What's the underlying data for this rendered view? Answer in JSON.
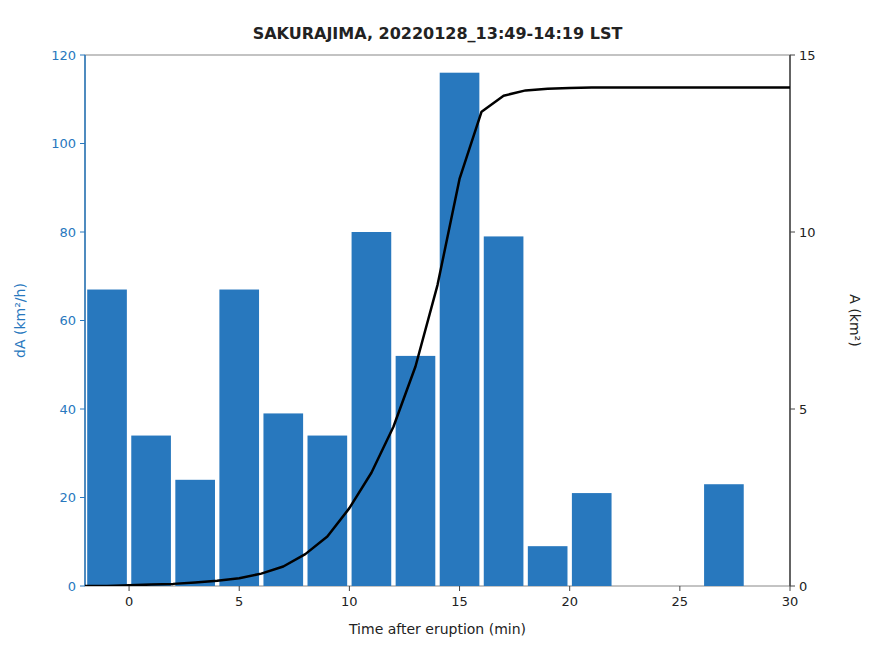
{
  "chart_data": {
    "type": "bar",
    "title": "SAKURAJIMA, 20220128_13:49-14:19 LST",
    "xlabel": "Time after eruption (min)",
    "ylabel": "dA (km²/h)",
    "y2label": "A (km²)",
    "xlim": [
      -2,
      30
    ],
    "xticks": [
      0,
      5,
      10,
      15,
      20,
      25,
      30
    ],
    "ylim": [
      0,
      120
    ],
    "yticks": [
      0,
      20,
      40,
      60,
      80,
      100,
      120
    ],
    "y2lim": [
      0,
      15
    ],
    "y2ticks": [
      0,
      5,
      10,
      15
    ],
    "series": [
      {
        "type": "bar",
        "color": "#2878be",
        "x": [
          -1,
          1,
          3,
          5,
          7,
          9,
          11,
          13,
          15,
          17,
          19,
          21,
          27
        ],
        "values": [
          67,
          34,
          24,
          67,
          39,
          34,
          80,
          52,
          116,
          79,
          9,
          21,
          23
        ]
      },
      {
        "type": "line",
        "color": "#000000",
        "axis": "y2",
        "x": [
          -2,
          -1,
          0,
          1,
          2,
          3,
          4,
          5,
          6,
          7,
          8,
          9,
          10,
          11,
          12,
          13,
          14,
          15,
          16,
          17,
          18,
          19,
          20,
          21,
          22,
          23,
          24,
          25,
          26,
          27,
          28,
          29,
          30
        ],
        "values": [
          0,
          0,
          0.02,
          0.04,
          0.06,
          0.1,
          0.15,
          0.22,
          0.35,
          0.55,
          0.9,
          1.4,
          2.2,
          3.2,
          4.5,
          6.2,
          8.5,
          11.5,
          13.4,
          13.85,
          14.0,
          14.05,
          14.07,
          14.08,
          14.08,
          14.08,
          14.08,
          14.08,
          14.08,
          14.08,
          14.08,
          14.08,
          14.08
        ]
      }
    ]
  }
}
